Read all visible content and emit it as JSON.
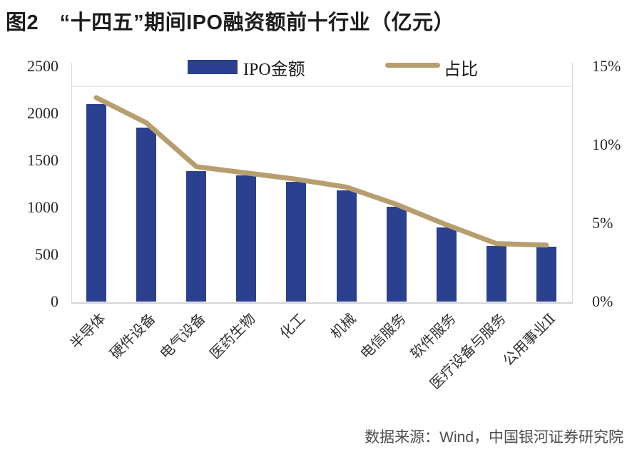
{
  "header": {
    "title": "图2　“十四五”期间IPO融资额前十行业（亿元）"
  },
  "legend": {
    "bar_label": "IPO金额",
    "line_label": "占比"
  },
  "footer": {
    "source": "数据来源：Wind，中国银河证券研究院"
  },
  "colors": {
    "bar": "#2B4190",
    "line": "#B79E6F",
    "axis": "#d8d8dc",
    "text": "#262626"
  },
  "chart_data": {
    "type": "bar",
    "title": "图2　“十四五”期间IPO融资额前十行业（亿元）",
    "categories": [
      "半导体",
      "硬件设备",
      "电气设备",
      "医药生物",
      "化工",
      "机械",
      "电信服务",
      "软件服务",
      "医疗设备与服务",
      "公用事业Ⅱ"
    ],
    "series": [
      {
        "name": "IPO金额",
        "type": "bar",
        "axis": "left",
        "color": "#2B4190",
        "values": [
          2100,
          1850,
          1390,
          1340,
          1270,
          1180,
          1010,
          790,
          590,
          580
        ]
      },
      {
        "name": "占比",
        "type": "line",
        "axis": "right",
        "color": "#B79E6F",
        "values": [
          13.0,
          11.4,
          8.6,
          8.2,
          7.8,
          7.3,
          6.2,
          4.9,
          3.7,
          3.6
        ]
      }
    ],
    "left_axis": {
      "label": "",
      "min": 0,
      "max": 2500,
      "step": 500,
      "ticks": [
        "2500",
        "2000",
        "1500",
        "1000",
        "500",
        "0"
      ]
    },
    "right_axis": {
      "label": "",
      "min": 0,
      "max": 15,
      "step": 5,
      "ticks": [
        "15%",
        "10%",
        "5%",
        "0%"
      ]
    },
    "xlabel": "",
    "ylabel": "",
    "legend_position": "top",
    "grid": false
  }
}
